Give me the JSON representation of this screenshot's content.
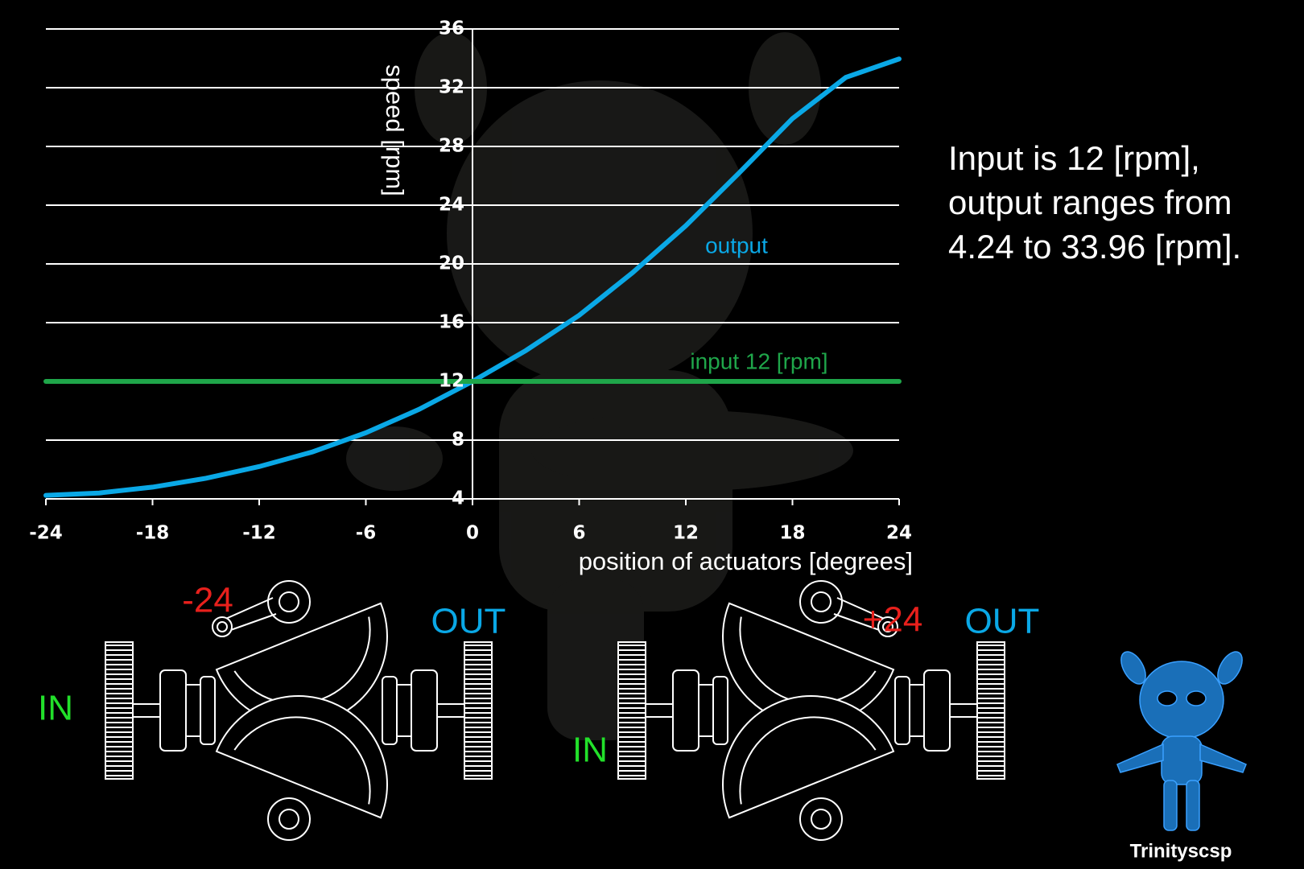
{
  "chart_data": {
    "type": "line",
    "x_label": "position of actuators [degrees]",
    "y_label": "speed [rpm]",
    "x": [
      -24,
      -21,
      -18,
      -15,
      -12,
      -9,
      -6,
      -3,
      0,
      3,
      6,
      9,
      12,
      15,
      18,
      21,
      24
    ],
    "series": [
      {
        "name": "output",
        "color": "#0aa8e6",
        "values": [
          4.24,
          4.4,
          4.8,
          5.4,
          6.2,
          7.2,
          8.5,
          10.1,
          12,
          14.1,
          16.5,
          19.4,
          22.6,
          26.2,
          29.9,
          32.7,
          33.96
        ]
      },
      {
        "name": "input 12 [rpm]",
        "color": "#1fa64a",
        "values": [
          12,
          12,
          12,
          12,
          12,
          12,
          12,
          12,
          12,
          12,
          12,
          12,
          12,
          12,
          12,
          12,
          12
        ]
      }
    ],
    "xlim": [
      -24,
      24
    ],
    "ylim": [
      4,
      36
    ],
    "xticks": [
      -24,
      -18,
      -12,
      -6,
      0,
      6,
      12,
      18,
      24
    ],
    "yticks": [
      4,
      8,
      12,
      16,
      20,
      24,
      28,
      32,
      36
    ],
    "grid": true
  },
  "side_note": [
    "Input is 12 [rpm],",
    "output ranges from",
    "4.24 to 33.96 [rpm]."
  ],
  "diagrams": [
    {
      "angle_label": "-24",
      "in_label": "IN",
      "out_label": "OUT"
    },
    {
      "angle_label": "+24",
      "in_label": "IN",
      "out_label": "OUT"
    }
  ],
  "credit": "Trinityscsp"
}
